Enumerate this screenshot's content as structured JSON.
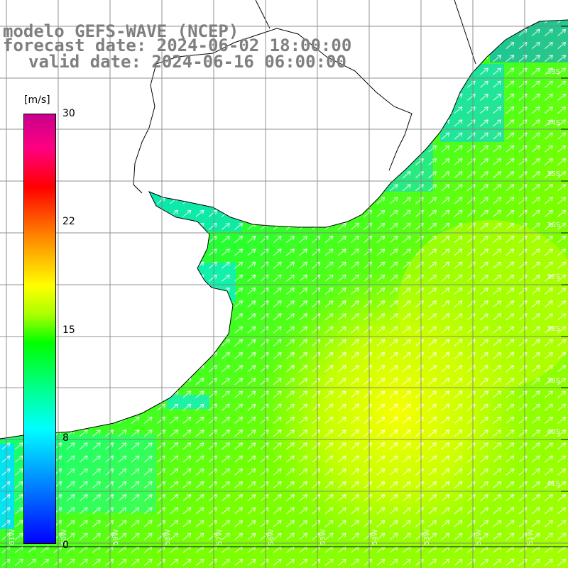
{
  "title": {
    "line1": "modelo GEFS-WAVE (NCEP)",
    "line2": "forecast date: 2024-06-02 18:00:00",
    "line3": "valid date: 2024-06-16 06:00:00"
  },
  "colorbar": {
    "unit": "[m/s]",
    "min": 0,
    "max": 30,
    "ticks": [
      "30",
      "22",
      "15",
      "8",
      "0"
    ],
    "tick_values": [
      30,
      22,
      15,
      8,
      0
    ],
    "colors": [
      "#0000ff",
      "#0080ff",
      "#00ffff",
      "#00ff80",
      "#00ff00",
      "#aaff00",
      "#ffff00",
      "#ff8000",
      "#ff0000",
      "#ff0080",
      "#c8008c"
    ]
  },
  "grid": {
    "lat_labels": [
      "33S",
      "34S",
      "35S",
      "36S",
      "37S",
      "38S",
      "39S",
      "40S",
      "41S"
    ],
    "lon_labels": [
      "61W",
      "60W",
      "59W",
      "58W",
      "57W",
      "56W",
      "55W",
      "54W",
      "53W",
      "52W",
      "51W"
    ],
    "line_color": "#808080"
  },
  "field": {
    "variable": "wind speed",
    "wind_direction": "southwest-to-northeast",
    "vector_color": "#ffffff",
    "coast_color": "#000000"
  }
}
